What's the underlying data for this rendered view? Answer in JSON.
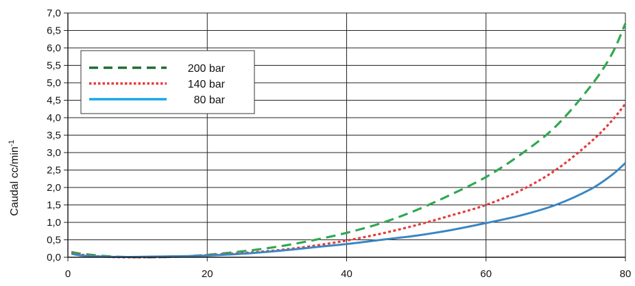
{
  "chart_data": {
    "type": "line",
    "title": "",
    "xlabel": "",
    "ylabel": "Caudal cc/min",
    "ylabel_superscript": "-1",
    "xlim": [
      0,
      80
    ],
    "ylim": [
      0,
      7
    ],
    "x_ticks": [
      "0",
      "20",
      "40",
      "60",
      "80"
    ],
    "y_ticks": [
      "0,0",
      "0,5",
      "1,0",
      "1,5",
      "2,0",
      "2,5",
      "3,0",
      "3,5",
      "4,0",
      "4,5",
      "5,0",
      "5,5",
      "6,0",
      "6,5",
      "7,0"
    ],
    "grid": true,
    "legend_position": "top-left",
    "series": [
      {
        "name": "200 bar",
        "color": "#2fa84f",
        "legend_color": "#1e6b34",
        "style": "dashed",
        "x": [
          0.5,
          2,
          5,
          8,
          12,
          16,
          20,
          25,
          30,
          35,
          40,
          45,
          50,
          55,
          60,
          65,
          70,
          75,
          78,
          80
        ],
        "y": [
          0.15,
          0.1,
          0.04,
          0.01,
          0.0,
          0.02,
          0.07,
          0.17,
          0.3,
          0.48,
          0.7,
          0.98,
          1.35,
          1.8,
          2.3,
          2.95,
          3.75,
          4.9,
          5.8,
          6.7
        ]
      },
      {
        "name": "140 bar",
        "color": "#e63a3a",
        "legend_color": "#e63a3a",
        "style": "dotted",
        "x": [
          0.5,
          2,
          5,
          8,
          12,
          16,
          20,
          25,
          30,
          35,
          40,
          45,
          50,
          55,
          60,
          65,
          70,
          75,
          78,
          80
        ],
        "y": [
          0.12,
          0.07,
          0.02,
          0.0,
          0.0,
          0.02,
          0.06,
          0.12,
          0.2,
          0.32,
          0.48,
          0.68,
          0.92,
          1.2,
          1.5,
          1.92,
          2.5,
          3.3,
          3.9,
          4.4
        ]
      },
      {
        "name": "80 bar",
        "color": "#3a86c4",
        "legend_color": "#19a8e0",
        "style": "solid",
        "x": [
          0.5,
          2,
          5,
          8,
          12,
          16,
          20,
          25,
          30,
          35,
          40,
          45,
          50,
          55,
          60,
          65,
          70,
          75,
          78,
          80
        ],
        "y": [
          0.1,
          0.05,
          0.02,
          0.01,
          0.02,
          0.03,
          0.05,
          0.1,
          0.18,
          0.28,
          0.38,
          0.5,
          0.62,
          0.78,
          0.98,
          1.2,
          1.5,
          1.95,
          2.35,
          2.7
        ]
      }
    ]
  }
}
